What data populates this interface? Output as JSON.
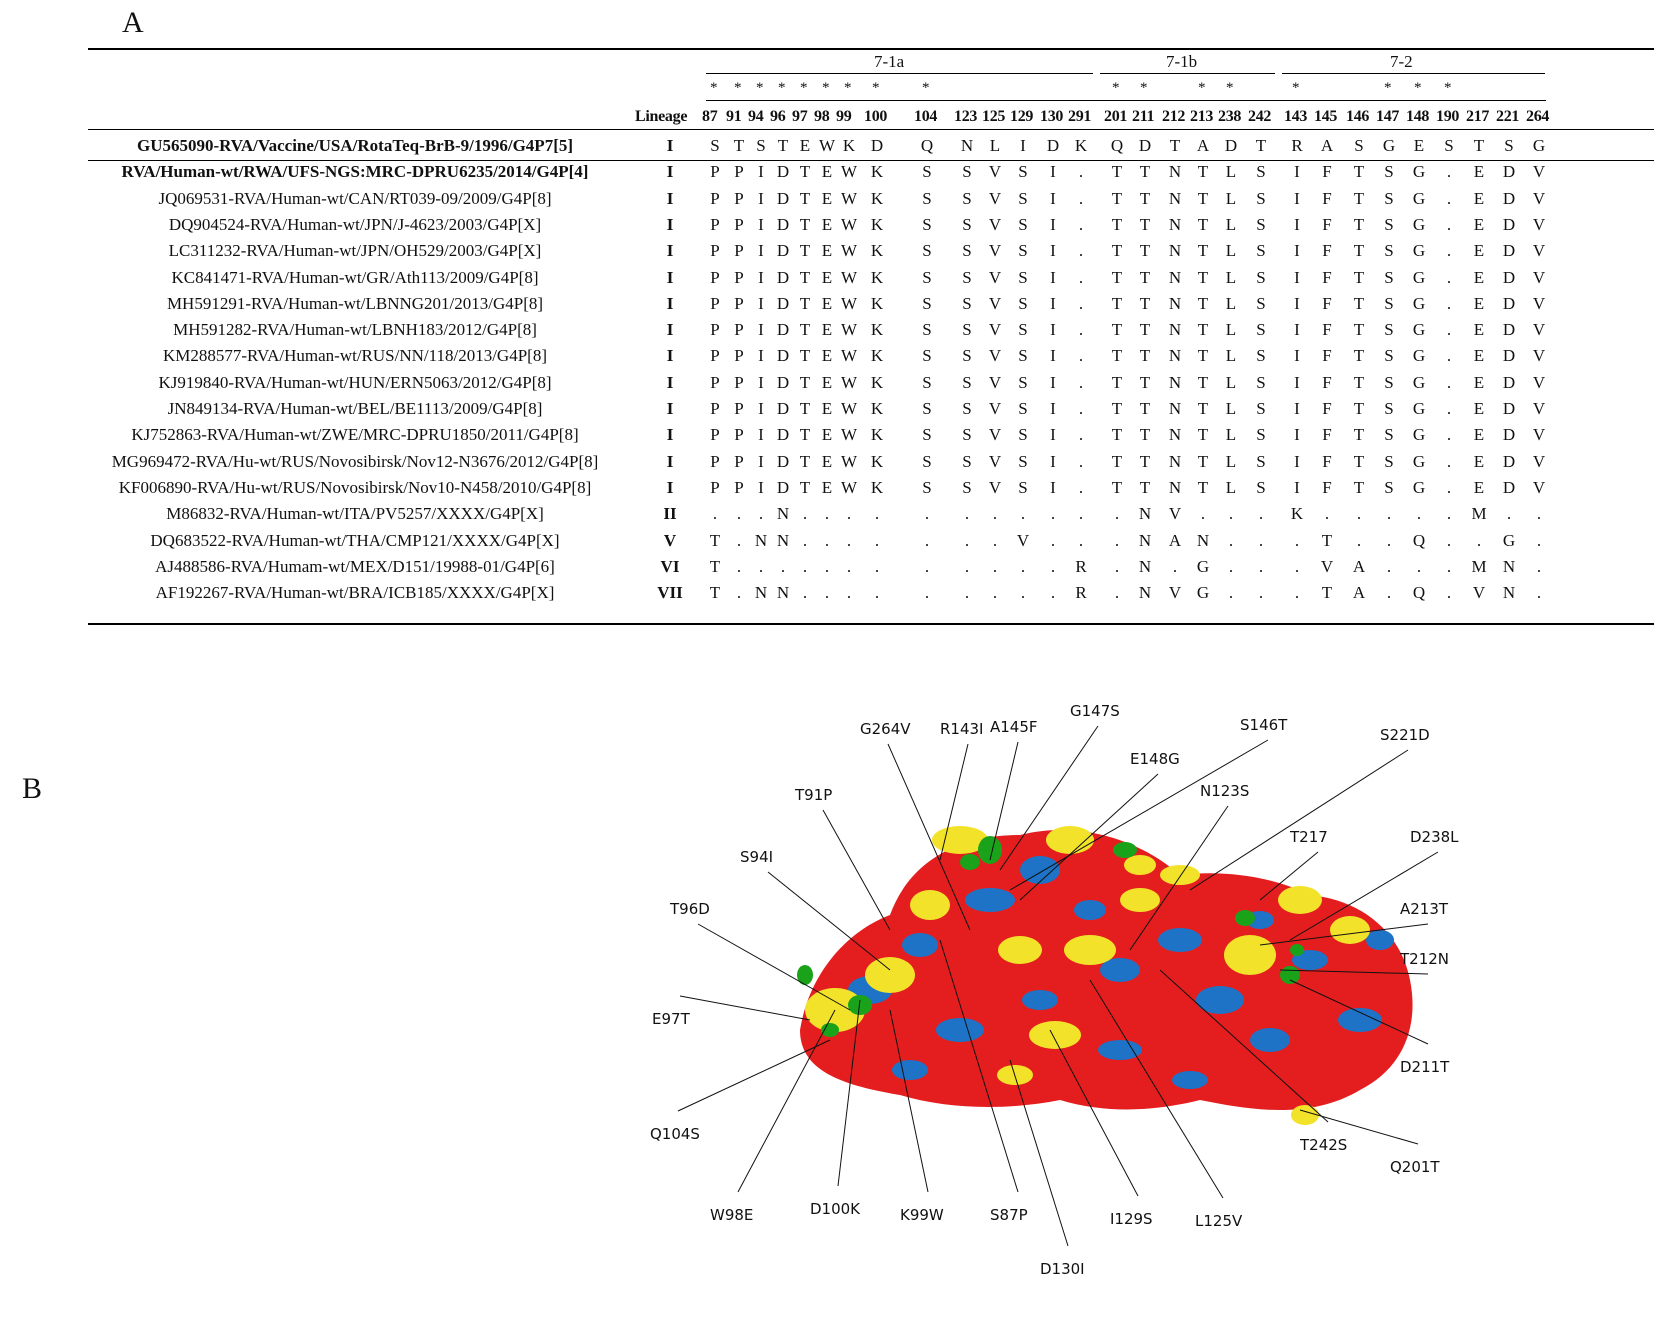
{
  "panel_a_label": "A",
  "panel_b_label": "B",
  "groups": [
    "7-1a",
    "7-1b",
    "7-2"
  ],
  "header": {
    "lineage_label": "Lineage",
    "positions": [
      "87",
      "91",
      "94",
      "96",
      "97",
      "98",
      "99",
      "100",
      "104",
      "123",
      "125",
      "129",
      "130",
      "291",
      "201",
      "211",
      "212",
      "213",
      "238",
      "242",
      "143",
      "145",
      "146",
      "147",
      "148",
      "190",
      "217",
      "221",
      "264"
    ]
  },
  "stars": [
    "*",
    "*",
    "*",
    "*",
    "*",
    "*",
    "*",
    "*",
    "*",
    "*",
    "*",
    "*",
    "*",
    "*",
    "*",
    "*",
    "*"
  ],
  "rows": [
    {
      "name": "GU565090-RVA/Vaccine/USA/RotaTeq-BrB-9/1996/G4P7[5]",
      "lineage": "I",
      "bold": true,
      "seq": [
        "S",
        "T",
        "S",
        "T",
        "E",
        "W",
        "K",
        "D",
        "Q",
        "N",
        "L",
        "I",
        "D",
        "K",
        "Q",
        "D",
        "T",
        "A",
        "D",
        "T",
        "R",
        "A",
        "S",
        "G",
        "E",
        "S",
        "T",
        "S",
        "G"
      ]
    },
    {
      "name": "RVA/Human-wt/RWA/UFS-NGS:MRC-DPRU6235/2014/G4P[4]",
      "lineage": "I",
      "bold": true,
      "seq": [
        "P",
        "P",
        "I",
        "D",
        "T",
        "E",
        "W",
        "K",
        "S",
        "S",
        "V",
        "S",
        "I",
        ".",
        "T",
        "T",
        "N",
        "T",
        "L",
        "S",
        "I",
        "F",
        "T",
        "S",
        "G",
        ".",
        "E",
        "D",
        "V"
      ]
    },
    {
      "name": "JQ069531-RVA/Human-wt/CAN/RT039-09/2009/G4P[8]",
      "lineage": "I",
      "bold": false,
      "seq": [
        "P",
        "P",
        "I",
        "D",
        "T",
        "E",
        "W",
        "K",
        "S",
        "S",
        "V",
        "S",
        "I",
        ".",
        "T",
        "T",
        "N",
        "T",
        "L",
        "S",
        "I",
        "F",
        "T",
        "S",
        "G",
        ".",
        "E",
        "D",
        "V"
      ]
    },
    {
      "name": "DQ904524-RVA/Human-wt/JPN/J-4623/2003/G4P[X]",
      "lineage": "I",
      "bold": false,
      "seq": [
        "P",
        "P",
        "I",
        "D",
        "T",
        "E",
        "W",
        "K",
        "S",
        "S",
        "V",
        "S",
        "I",
        ".",
        "T",
        "T",
        "N",
        "T",
        "L",
        "S",
        "I",
        "F",
        "T",
        "S",
        "G",
        ".",
        "E",
        "D",
        "V"
      ]
    },
    {
      "name": "LC311232-RVA/Human-wt/JPN/OH529/2003/G4P[X]",
      "lineage": "I",
      "bold": false,
      "seq": [
        "P",
        "P",
        "I",
        "D",
        "T",
        "E",
        "W",
        "K",
        "S",
        "S",
        "V",
        "S",
        "I",
        ".",
        "T",
        "T",
        "N",
        "T",
        "L",
        "S",
        "I",
        "F",
        "T",
        "S",
        "G",
        ".",
        "E",
        "D",
        "V"
      ]
    },
    {
      "name": "KC841471-RVA/Human-wt/GR/Ath113/2009/G4P[8]",
      "lineage": "I",
      "bold": false,
      "seq": [
        "P",
        "P",
        "I",
        "D",
        "T",
        "E",
        "W",
        "K",
        "S",
        "S",
        "V",
        "S",
        "I",
        ".",
        "T",
        "T",
        "N",
        "T",
        "L",
        "S",
        "I",
        "F",
        "T",
        "S",
        "G",
        ".",
        "E",
        "D",
        "V"
      ]
    },
    {
      "name": "MH591291-RVA/Human-wt/LBNNG201/2013/G4P[8]",
      "lineage": "I",
      "bold": false,
      "seq": [
        "P",
        "P",
        "I",
        "D",
        "T",
        "E",
        "W",
        "K",
        "S",
        "S",
        "V",
        "S",
        "I",
        ".",
        "T",
        "T",
        "N",
        "T",
        "L",
        "S",
        "I",
        "F",
        "T",
        "S",
        "G",
        ".",
        "E",
        "D",
        "V"
      ]
    },
    {
      "name": "MH591282-RVA/Human-wt/LBNH183/2012/G4P[8]",
      "lineage": "I",
      "bold": false,
      "seq": [
        "P",
        "P",
        "I",
        "D",
        "T",
        "E",
        "W",
        "K",
        "S",
        "S",
        "V",
        "S",
        "I",
        ".",
        "T",
        "T",
        "N",
        "T",
        "L",
        "S",
        "I",
        "F",
        "T",
        "S",
        "G",
        ".",
        "E",
        "D",
        "V"
      ]
    },
    {
      "name": "KM288577-RVA/Human-wt/RUS/NN/118/2013/G4P[8]",
      "lineage": "I",
      "bold": false,
      "seq": [
        "P",
        "P",
        "I",
        "D",
        "T",
        "E",
        "W",
        "K",
        "S",
        "S",
        "V",
        "S",
        "I",
        ".",
        "T",
        "T",
        "N",
        "T",
        "L",
        "S",
        "I",
        "F",
        "T",
        "S",
        "G",
        ".",
        "E",
        "D",
        "V"
      ]
    },
    {
      "name": "KJ919840-RVA/Human-wt/HUN/ERN5063/2012/G4P[8]",
      "lineage": "I",
      "bold": false,
      "seq": [
        "P",
        "P",
        "I",
        "D",
        "T",
        "E",
        "W",
        "K",
        "S",
        "S",
        "V",
        "S",
        "I",
        ".",
        "T",
        "T",
        "N",
        "T",
        "L",
        "S",
        "I",
        "F",
        "T",
        "S",
        "G",
        ".",
        "E",
        "D",
        "V"
      ]
    },
    {
      "name": "JN849134-RVA/Human-wt/BEL/BE1113/2009/G4P[8]",
      "lineage": "I",
      "bold": false,
      "seq": [
        "P",
        "P",
        "I",
        "D",
        "T",
        "E",
        "W",
        "K",
        "S",
        "S",
        "V",
        "S",
        "I",
        ".",
        "T",
        "T",
        "N",
        "T",
        "L",
        "S",
        "I",
        "F",
        "T",
        "S",
        "G",
        ".",
        "E",
        "D",
        "V"
      ]
    },
    {
      "name": "KJ752863-RVA/Human-wt/ZWE/MRC-DPRU1850/2011/G4P[8]",
      "lineage": "I",
      "bold": false,
      "seq": [
        "P",
        "P",
        "I",
        "D",
        "T",
        "E",
        "W",
        "K",
        "S",
        "S",
        "V",
        "S",
        "I",
        ".",
        "T",
        "T",
        "N",
        "T",
        "L",
        "S",
        "I",
        "F",
        "T",
        "S",
        "G",
        ".",
        "E",
        "D",
        "V"
      ]
    },
    {
      "name": "MG969472-RVA/Hu-wt/RUS/Novosibirsk/Nov12-N3676/2012/G4P[8]",
      "lineage": "I",
      "bold": false,
      "seq": [
        "P",
        "P",
        "I",
        "D",
        "T",
        "E",
        "W",
        "K",
        "S",
        "S",
        "V",
        "S",
        "I",
        ".",
        "T",
        "T",
        "N",
        "T",
        "L",
        "S",
        "I",
        "F",
        "T",
        "S",
        "G",
        ".",
        "E",
        "D",
        "V"
      ]
    },
    {
      "name": "KF006890-RVA/Hu-wt/RUS/Novosibirsk/Nov10-N458/2010/G4P[8]",
      "lineage": "I",
      "bold": false,
      "seq": [
        "P",
        "P",
        "I",
        "D",
        "T",
        "E",
        "W",
        "K",
        "S",
        "S",
        "V",
        "S",
        "I",
        ".",
        "T",
        "T",
        "N",
        "T",
        "L",
        "S",
        "I",
        "F",
        "T",
        "S",
        "G",
        ".",
        "E",
        "D",
        "V"
      ]
    },
    {
      "name": "M86832-RVA/Human-wt/ITA/PV5257/XXXX/G4P[X]",
      "lineage": "II",
      "bold": false,
      "seq": [
        ".",
        ".",
        ".",
        "N",
        ".",
        ".",
        ".",
        ".",
        ".",
        ".",
        ".",
        ".",
        ".",
        ".",
        ".",
        "N",
        "V",
        ".",
        ".",
        ".",
        "K",
        ".",
        ".",
        ".",
        ".",
        ".",
        "M",
        ".",
        "."
      ]
    },
    {
      "name": "DQ683522-RVA/Human-wt/THA/CMP121/XXXX/G4P[X]",
      "lineage": "V",
      "bold": false,
      "seq": [
        "T",
        ".",
        "N",
        "N",
        ".",
        ".",
        ".",
        ".",
        ".",
        ".",
        ".",
        "V",
        ".",
        ".",
        ".",
        "N",
        "A",
        "N",
        ".",
        ".",
        ".",
        "T",
        ".",
        ".",
        "Q",
        ".",
        ".",
        "G",
        "."
      ]
    },
    {
      "name": "AJ488586-RVA/Humam-wt/MEX/D151/19988-01/G4P[6]",
      "lineage": "VI",
      "bold": false,
      "seq": [
        "T",
        ".",
        ".",
        ".",
        ".",
        ".",
        ".",
        ".",
        ".",
        ".",
        ".",
        ".",
        ".",
        "R",
        ".",
        "N",
        ".",
        "G",
        ".",
        ".",
        ".",
        "V",
        "A",
        ".",
        ".",
        ".",
        "M",
        "N",
        "."
      ]
    },
    {
      "name": "AF192267-RVA/Human-wt/BRA/ICB185/XXXX/G4P[X]",
      "lineage": "VII",
      "bold": false,
      "seq": [
        "T",
        ".",
        "N",
        "N",
        ".",
        ".",
        ".",
        ".",
        ".",
        ".",
        ".",
        ".",
        ".",
        "R",
        ".",
        "N",
        "V",
        "G",
        ".",
        ".",
        ".",
        "T",
        "A",
        ".",
        "Q",
        ".",
        "V",
        "N",
        "."
      ]
    }
  ],
  "annotations": [
    "G264V",
    "R143I",
    "A145F",
    "G147S",
    "S146T",
    "S221D",
    "E148G",
    "N123S",
    "T91P",
    "T217",
    "D238L",
    "S94I",
    "T96D",
    "A213T",
    "T212N",
    "E97T",
    "D211T",
    "Q104S",
    "T242S",
    "Q201T",
    "W98E",
    "D100K",
    "K99W",
    "S87P",
    "I129S",
    "L125V",
    "D130I"
  ],
  "colors": {
    "red": "#e41e1e",
    "blue": "#1e73c6",
    "yellow": "#f2e32a",
    "green": "#1aa31a"
  }
}
